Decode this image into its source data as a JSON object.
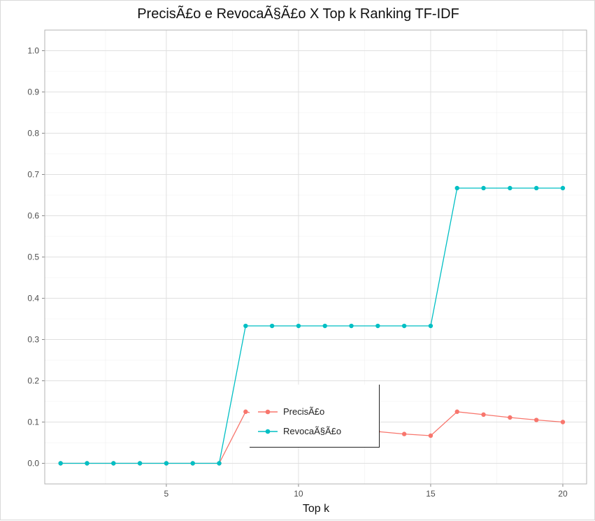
{
  "chart_data": {
    "type": "line",
    "title": "PrecisÃ£o e RevocaÃ§Ã£o X Top k Ranking TF-IDF",
    "xlabel": "Top k",
    "ylabel": "",
    "x": [
      1,
      2,
      3,
      4,
      5,
      6,
      7,
      8,
      9,
      10,
      11,
      12,
      13,
      14,
      15,
      16,
      17,
      18,
      19,
      20
    ],
    "xlim": [
      0.4,
      20.9
    ],
    "ylim": [
      -0.05,
      1.05
    ],
    "x_ticks": [
      5,
      10,
      15,
      20
    ],
    "y_ticks": [
      0.0,
      0.1,
      0.2,
      0.3,
      0.4,
      0.5,
      0.6,
      0.7,
      0.8,
      0.9,
      1.0
    ],
    "grid": true,
    "legend_position": "bottom-center",
    "series": [
      {
        "name": "PrecisÃ£o",
        "color": "#F8766D",
        "values": [
          0,
          0,
          0,
          0,
          0,
          0,
          0,
          0.125,
          0.111,
          0.1,
          0.091,
          0.083,
          0.077,
          0.071,
          0.067,
          0.125,
          0.118,
          0.111,
          0.105,
          0.1
        ]
      },
      {
        "name": "RevocaÃ§Ã£o",
        "color": "#00BFC4",
        "values": [
          0,
          0,
          0,
          0,
          0,
          0,
          0,
          0.333,
          0.333,
          0.333,
          0.333,
          0.333,
          0.333,
          0.333,
          0.333,
          0.667,
          0.667,
          0.667,
          0.667,
          0.667
        ]
      }
    ]
  }
}
